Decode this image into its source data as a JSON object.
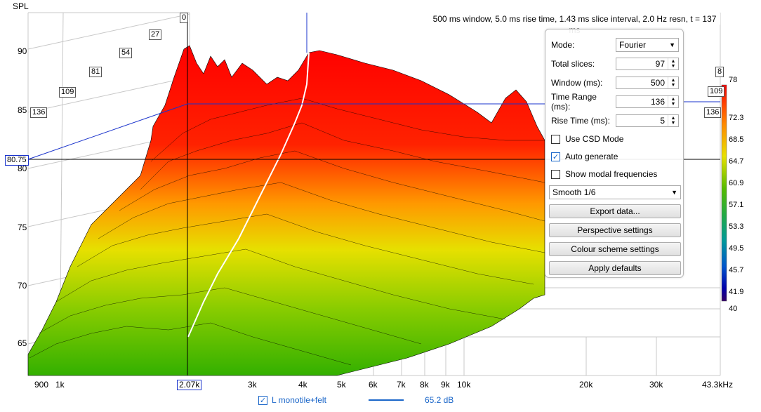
{
  "axis": {
    "y_title": "SPL",
    "y_ticks": [
      "90",
      "85",
      "80",
      "75",
      "70",
      "65"
    ],
    "x_ticks": [
      "900",
      "1k",
      "2.07k",
      "3k",
      "4k",
      "5k",
      "6k",
      "7k",
      "8k",
      "9k",
      "10k",
      "20k",
      "30k",
      "43.3kHz"
    ],
    "cursor_y_value": "80.75",
    "cursor_x_value": "2.07k",
    "time_ticks": [
      "0",
      "27",
      "54",
      "81",
      "109",
      "136"
    ],
    "right_time_ticks": [
      "8",
      "109",
      "136"
    ]
  },
  "info_text": "500 ms window, 5.0 ms rise time, 1.43 ms slice interval, 2.0 Hz resn, t = 137 ms",
  "panel": {
    "mode_label": "Mode:",
    "mode_value": "Fourier",
    "total_slices_label": "Total slices:",
    "total_slices_value": "97",
    "window_label": "Window (ms):",
    "window_value": "500",
    "time_range_label": "Time Range (ms):",
    "time_range_value": "136",
    "rise_time_label": "Rise Time (ms):",
    "rise_time_value": "5",
    "use_csd_label": "Use CSD Mode",
    "use_csd_checked": false,
    "auto_generate_label": "Auto generate",
    "auto_generate_checked": true,
    "modal_label": "Show modal frequencies",
    "modal_checked": false,
    "smoothing_value": "Smooth 1/6",
    "export_label": "Export data...",
    "perspective_label": "Perspective settings",
    "colour_label": "Colour scheme settings",
    "defaults_label": "Apply defaults"
  },
  "scale": {
    "labels": [
      "78",
      "72.3",
      "68.5",
      "64.7",
      "60.9",
      "57.1",
      "53.3",
      "49.5",
      "45.7",
      "41.9",
      "40"
    ]
  },
  "legend": {
    "name": "L monotile+felt",
    "value": "65.2 dB",
    "color": "#1a66c9"
  },
  "colors": {
    "hot": "#ff0000",
    "warm": "#ff8800",
    "mid": "#e8e000",
    "cool": "#44bb00"
  }
}
